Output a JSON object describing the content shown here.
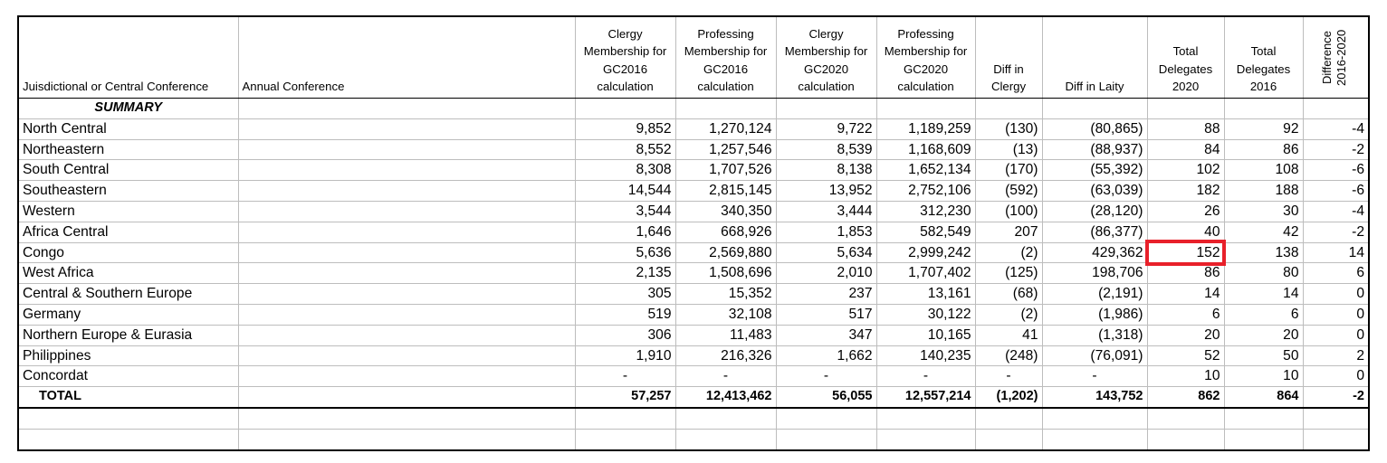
{
  "headers": {
    "jurisdiction": "Juisdictional or Central Conference",
    "annual": "Annual Conference",
    "clergy_2016": "Clergy Membership for GC2016 calculation",
    "prof_2016": "Professing Membership for GC2016 calculation",
    "clergy_2020": "Clergy Membership for GC2020 calculation",
    "prof_2020": "Professing Membership for GC2020 calculation",
    "diff_clergy": "Diff in Clergy",
    "diff_laity": "Diff in Laity",
    "delegates_2020": "Total Delegates 2020",
    "delegates_2016": "Total Delegates 2016",
    "difference": "Difference 2016-2020"
  },
  "summary_label": "SUMMARY",
  "rows": [
    {
      "name": "North Central",
      "c16": "9,852",
      "p16": "1,270,124",
      "c20": "9,722",
      "p20": "1,189,259",
      "dc": "(130)",
      "dl": "(80,865)",
      "t20": "88",
      "t16": "92",
      "diff": "-4"
    },
    {
      "name": "Northeastern",
      "c16": "8,552",
      "p16": "1,257,546",
      "c20": "8,539",
      "p20": "1,168,609",
      "dc": "(13)",
      "dl": "(88,937)",
      "t20": "84",
      "t16": "86",
      "diff": "-2"
    },
    {
      "name": "South Central",
      "c16": "8,308",
      "p16": "1,707,526",
      "c20": "8,138",
      "p20": "1,652,134",
      "dc": "(170)",
      "dl": "(55,392)",
      "t20": "102",
      "t16": "108",
      "diff": "-6"
    },
    {
      "name": "Southeastern",
      "c16": "14,544",
      "p16": "2,815,145",
      "c20": "13,952",
      "p20": "2,752,106",
      "dc": "(592)",
      "dl": "(63,039)",
      "t20": "182",
      "t16": "188",
      "diff": "-6"
    },
    {
      "name": "Western",
      "c16": "3,544",
      "p16": "340,350",
      "c20": "3,444",
      "p20": "312,230",
      "dc": "(100)",
      "dl": "(28,120)",
      "t20": "26",
      "t16": "30",
      "diff": "-4"
    },
    {
      "name": "Africa Central",
      "c16": "1,646",
      "p16": "668,926",
      "c20": "1,853",
      "p20": "582,549",
      "dc": "207",
      "dl": "(86,377)",
      "t20": "40",
      "t16": "42",
      "diff": "-2"
    },
    {
      "name": "Congo",
      "c16": "5,636",
      "p16": "2,569,880",
      "c20": "5,634",
      "p20": "2,999,242",
      "dc": "(2)",
      "dl": "429,362",
      "t20": "152",
      "t16": "138",
      "diff": "14"
    },
    {
      "name": "West Africa",
      "c16": "2,135",
      "p16": "1,508,696",
      "c20": "2,010",
      "p20": "1,707,402",
      "dc": "(125)",
      "dl": "198,706",
      "t20": "86",
      "t16": "80",
      "diff": "6"
    },
    {
      "name": "Central & Southern Europe",
      "c16": "305",
      "p16": "15,352",
      "c20": "237",
      "p20": "13,161",
      "dc": "(68)",
      "dl": "(2,191)",
      "t20": "14",
      "t16": "14",
      "diff": "0"
    },
    {
      "name": "Germany",
      "c16": "519",
      "p16": "32,108",
      "c20": "517",
      "p20": "30,122",
      "dc": "(2)",
      "dl": "(1,986)",
      "t20": "6",
      "t16": "6",
      "diff": "0"
    },
    {
      "name": "Northern Europe & Eurasia",
      "c16": "306",
      "p16": "11,483",
      "c20": "347",
      "p20": "10,165",
      "dc": "41",
      "dl": "(1,318)",
      "t20": "20",
      "t16": "20",
      "diff": "0"
    },
    {
      "name": "Philippines",
      "c16": "1,910",
      "p16": "216,326",
      "c20": "1,662",
      "p20": "140,235",
      "dc": "(248)",
      "dl": "(76,091)",
      "t20": "52",
      "t16": "50",
      "diff": "2"
    },
    {
      "name": "Concordat",
      "c16": "-",
      "p16": "-",
      "c20": "-",
      "p20": "-",
      "dc": "-",
      "dl": "-",
      "t20": "10",
      "t16": "10",
      "diff": "0"
    }
  ],
  "total": {
    "name": "TOTAL",
    "c16": "57,257",
    "p16": "12,413,462",
    "c20": "56,055",
    "p20": "12,557,214",
    "dc": "(1,202)",
    "dl": "143,752",
    "t20": "862",
    "t16": "864",
    "diff": "-2"
  },
  "highlight": {
    "row": "Congo",
    "column": "Total Delegates 2020",
    "color": "#e8202a"
  }
}
